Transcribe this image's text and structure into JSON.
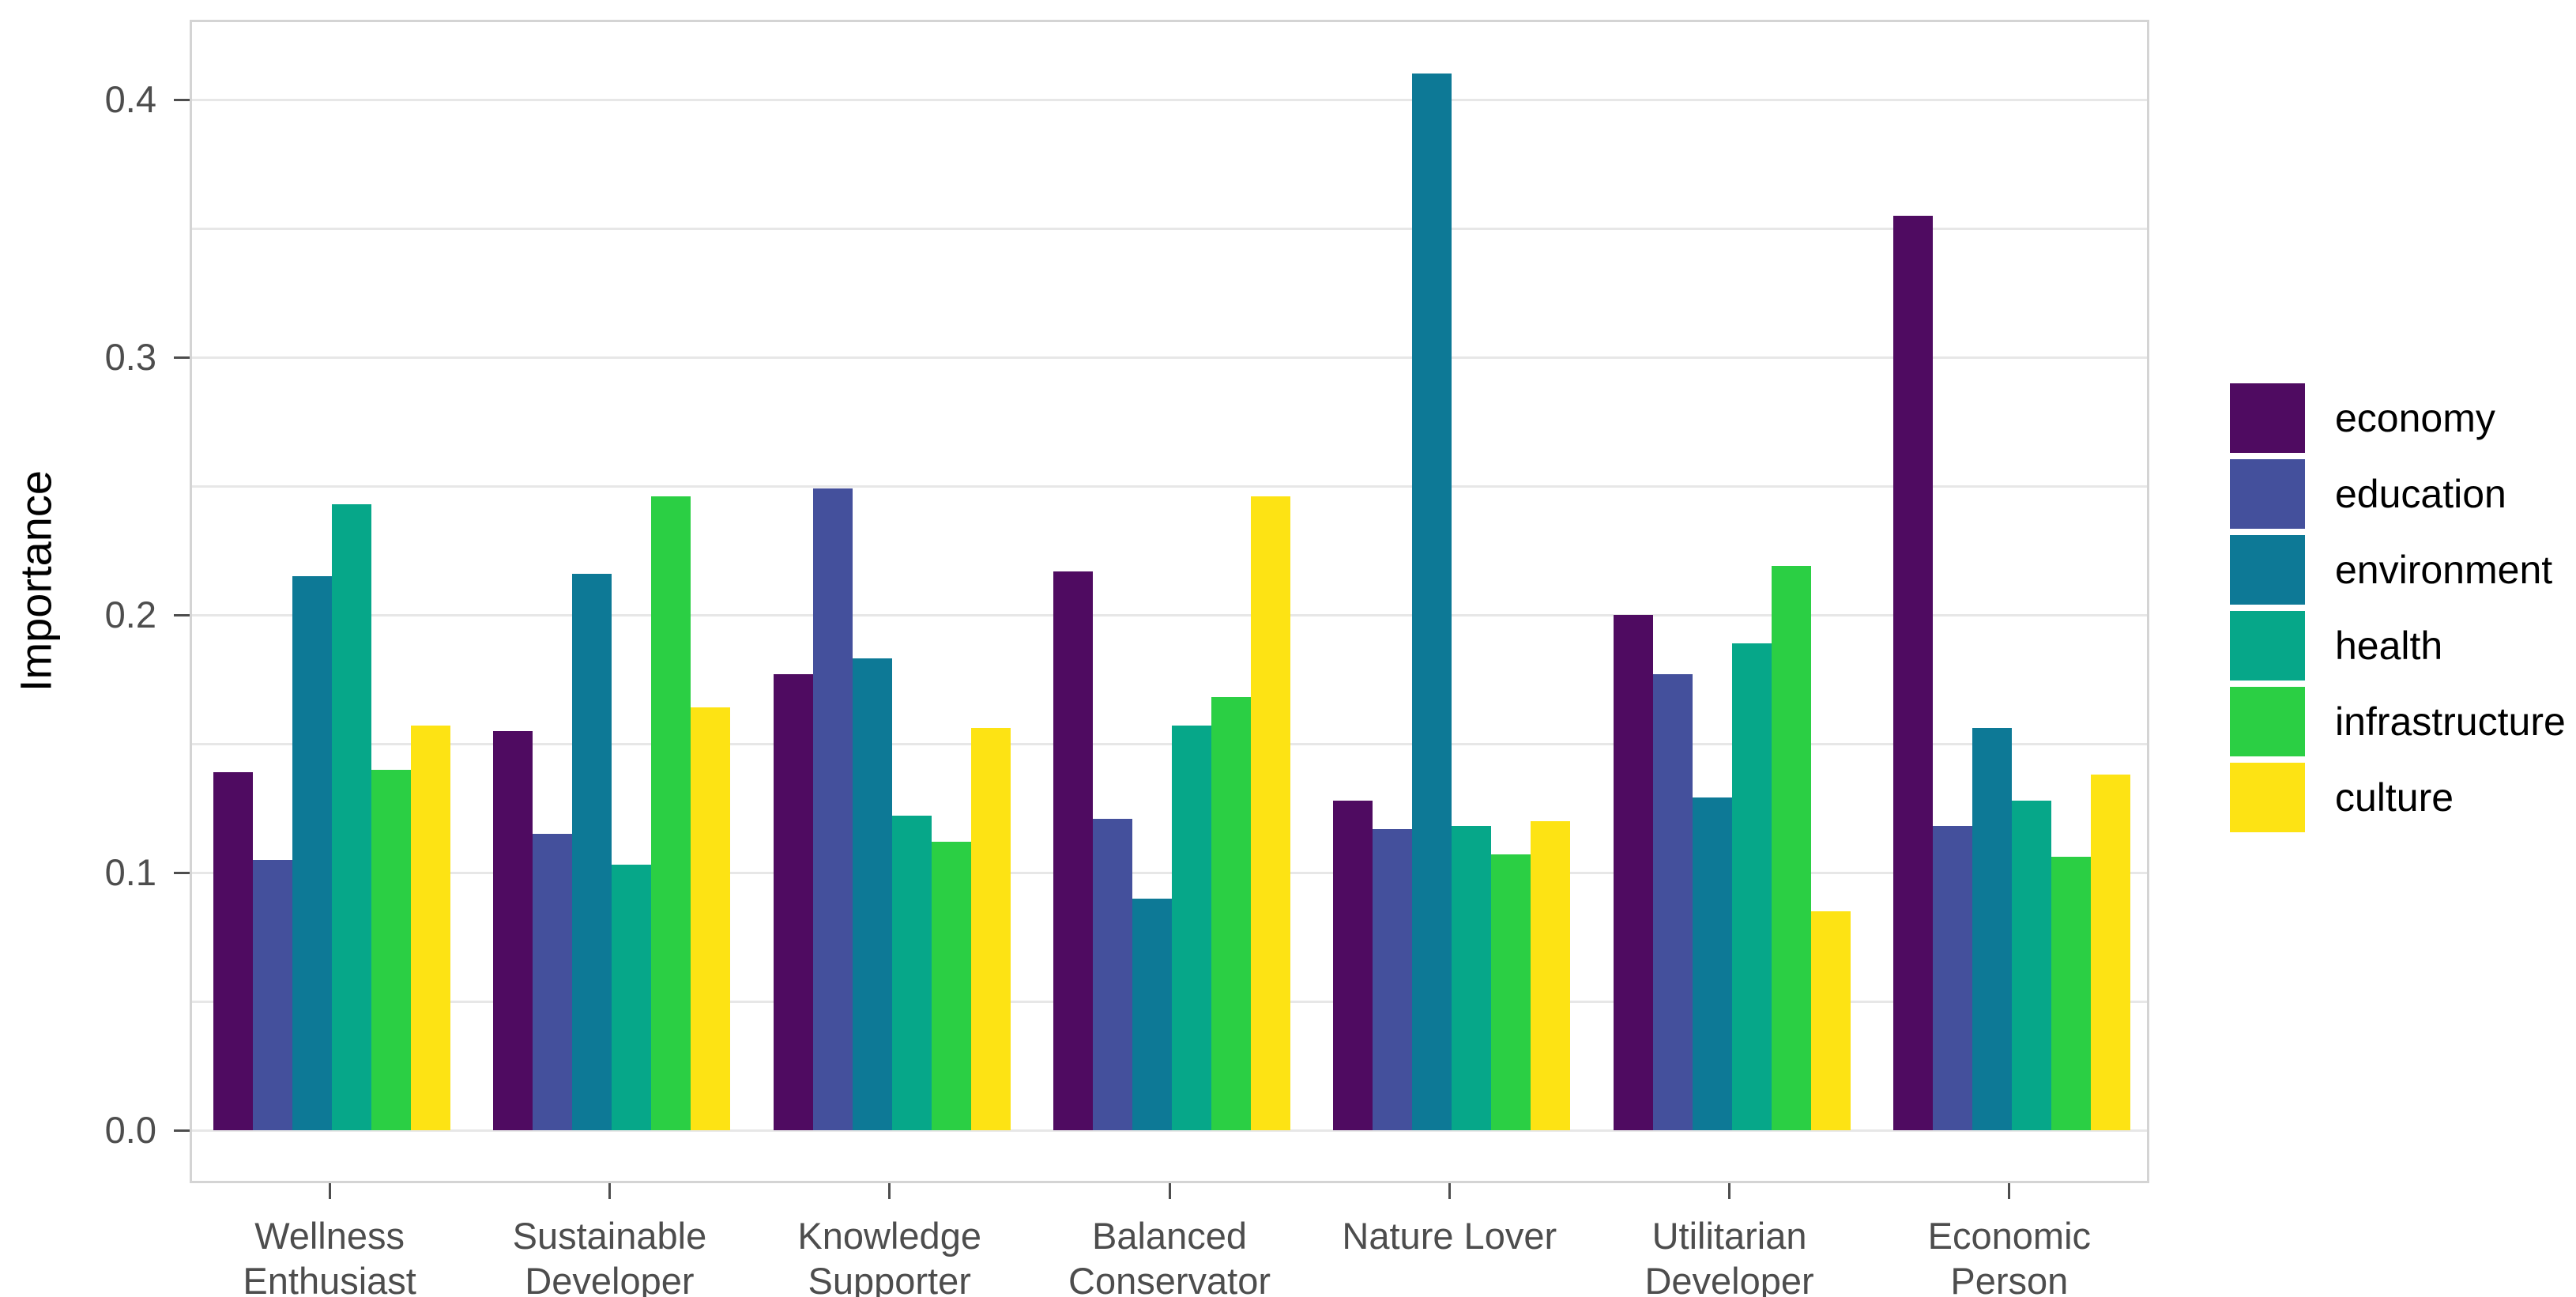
{
  "chart_data": {
    "type": "bar",
    "title": "",
    "xlabel": "",
    "ylabel": "Importance",
    "ylim": [
      0,
      0.43
    ],
    "grid": true,
    "legend_position": "right",
    "yticks": [
      {
        "value": 0.0,
        "label": "0.0"
      },
      {
        "value": 0.1,
        "label": "0.1"
      },
      {
        "value": 0.2,
        "label": "0.2"
      },
      {
        "value": 0.3,
        "label": "0.3"
      },
      {
        "value": 0.4,
        "label": "0.4"
      }
    ],
    "gridline_values": [
      0.0,
      0.05,
      0.1,
      0.15,
      0.2,
      0.25,
      0.3,
      0.35,
      0.4
    ],
    "categories": [
      "Wellness\nEnthusiast",
      "Sustainable\nDeveloper",
      "Knowledge\nSupporter",
      "Balanced\nConservator",
      "Nature Lover",
      "Utilitarian\nDeveloper",
      "Economic\nPerson"
    ],
    "series": [
      {
        "name": "economy",
        "color": "#4f0b61",
        "values": [
          0.139,
          0.155,
          0.177,
          0.217,
          0.128,
          0.2,
          0.355
        ]
      },
      {
        "name": "education",
        "color": "#44509c",
        "values": [
          0.105,
          0.115,
          0.249,
          0.121,
          0.117,
          0.177,
          0.118
        ]
      },
      {
        "name": "environment",
        "color": "#0d7996",
        "values": [
          0.215,
          0.216,
          0.183,
          0.09,
          0.41,
          0.129,
          0.156
        ]
      },
      {
        "name": "health",
        "color": "#06a789",
        "values": [
          0.243,
          0.103,
          0.122,
          0.157,
          0.118,
          0.189,
          0.128
        ]
      },
      {
        "name": "infrastructure",
        "color": "#2bcf44",
        "values": [
          0.14,
          0.246,
          0.112,
          0.168,
          0.107,
          0.219,
          0.106
        ]
      },
      {
        "name": "culture",
        "color": "#fde314",
        "values": [
          0.157,
          0.164,
          0.156,
          0.246,
          0.12,
          0.085,
          0.138
        ]
      }
    ]
  }
}
